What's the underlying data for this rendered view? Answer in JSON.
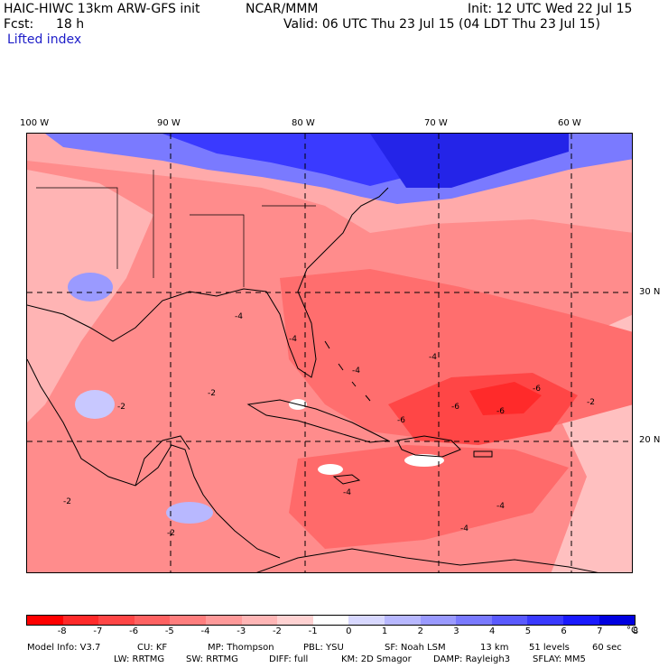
{
  "header": {
    "model_title": "HAIC-HIWC 13km ARW-GFS init",
    "center": "NCAR/MMM",
    "init": "Init: 12 UTC Wed 22 Jul 15",
    "fcst_label": "Fcst:",
    "fcst_value": "18 h",
    "valid": "Valid: 06 UTC Thu 23 Jul 15 (04 LDT Thu 23 Jul 15)",
    "field": "Lifted index"
  },
  "map": {
    "lon_labels": [
      "100 W",
      "90 W",
      "80 W",
      "70 W",
      "60 W"
    ],
    "lat_labels": [
      "30 N",
      "20 N"
    ],
    "contour_labels": [
      "-2",
      "-2",
      "-2",
      "-4",
      "-4",
      "-4",
      "-4",
      "-4",
      "-6",
      "-6",
      "-6",
      "-6",
      "-2",
      "-4",
      "-2",
      "-4"
    ]
  },
  "legend": {
    "colors": [
      "#ff0000",
      "#ff2a2a",
      "#ff4646",
      "#ff6262",
      "#ff7e7e",
      "#ff9a9a",
      "#ffb6b6",
      "#ffd2d2",
      "#ffffff",
      "#d8d8ff",
      "#b8b8ff",
      "#9a9aff",
      "#7a7aff",
      "#5a5aff",
      "#3a3aff",
      "#1a1aff",
      "#0000e0"
    ],
    "ticks": [
      "-8",
      "-7",
      "-6",
      "-5",
      "-4",
      "-3",
      "-2",
      "-1",
      "0",
      "1",
      "2",
      "3",
      "4",
      "5",
      "6",
      "7",
      "8"
    ],
    "unit": "°C"
  },
  "footer": {
    "line1": [
      "Model Info: V3.7",
      "CU: KF",
      "MP: Thompson",
      "PBL: YSU",
      "SF: Noah LSM",
      "13 km",
      "51 levels",
      "60 sec"
    ],
    "line2": [
      "LW: RRTMG",
      "SW: RRTMG",
      "DIFF: full",
      "KM: 2D Smagor",
      "DAMP: Rayleigh3",
      "SFLAY: MM5"
    ]
  }
}
